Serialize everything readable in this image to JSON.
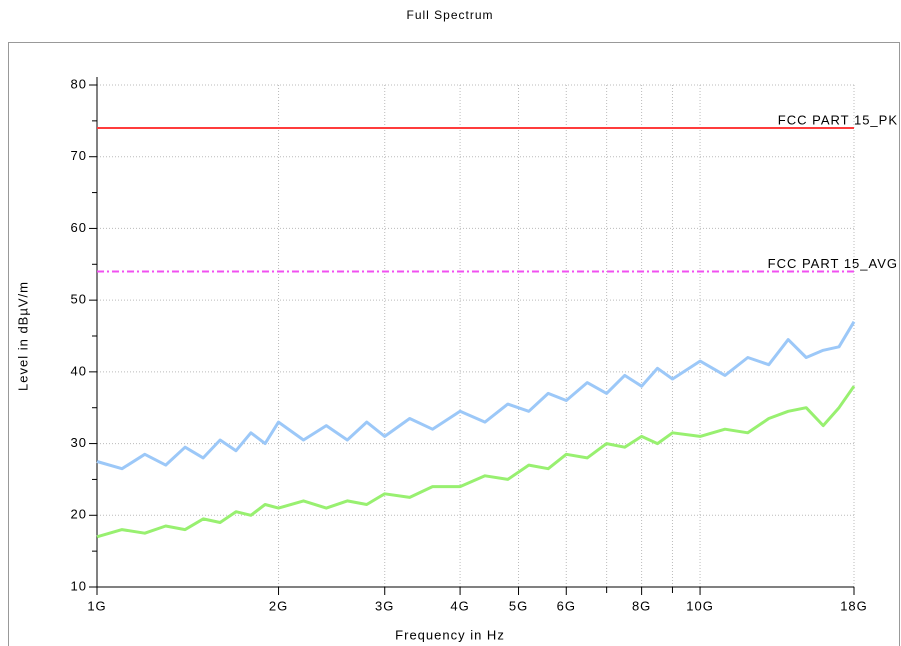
{
  "chart_data": {
    "type": "line",
    "title": "Full Spectrum",
    "xlabel": "Frequency in Hz",
    "ylabel": "Level in dBµV/m",
    "xscale": "log",
    "grid": true,
    "xlim": [
      1000000000.0,
      18000000000.0
    ],
    "xticks": [
      {
        "value": 1000000000.0,
        "label": "1G"
      },
      {
        "value": 2000000000.0,
        "label": "2G"
      },
      {
        "value": 3000000000.0,
        "label": "3G"
      },
      {
        "value": 4000000000.0,
        "label": "4G"
      },
      {
        "value": 5000000000.0,
        "label": "5G"
      },
      {
        "value": 6000000000.0,
        "label": "6G"
      },
      {
        "value": 8000000000.0,
        "label": "8G"
      },
      {
        "value": 10000000000.0,
        "label": "10G"
      },
      {
        "value": 18000000000.0,
        "label": "18G"
      }
    ],
    "xminorticks": [
      7000000000.0,
      9000000000.0
    ],
    "ylim": [
      10,
      80
    ],
    "yticks": [
      10,
      20,
      30,
      40,
      50,
      60,
      70,
      80
    ],
    "yminorticks": [
      15,
      25,
      35,
      45,
      55,
      65,
      75
    ],
    "x": [
      1000000000.0,
      1100000000.0,
      1200000000.0,
      1300000000.0,
      1400000000.0,
      1500000000.0,
      1600000000.0,
      1700000000.0,
      1800000000.0,
      1900000000.0,
      2000000000.0,
      2200000000.0,
      2400000000.0,
      2600000000.0,
      2800000000.0,
      3000000000.0,
      3300000000.0,
      3600000000.0,
      4000000000.0,
      4400000000.0,
      4800000000.0,
      5200000000.0,
      5600000000.0,
      6000000000.0,
      6500000000.0,
      7000000000.0,
      7500000000.0,
      8000000000.0,
      8500000000.0,
      9000000000.0,
      10000000000.0,
      11000000000.0,
      12000000000.0,
      13000000000.0,
      14000000000.0,
      15000000000.0,
      16000000000.0,
      17000000000.0,
      18000000000.0
    ],
    "series": [
      {
        "color": "#9cc8f8",
        "values": [
          27.5,
          26.5,
          28.5,
          27,
          29.5,
          28,
          30.5,
          29,
          31.5,
          30,
          33,
          30.5,
          32.5,
          30.5,
          33,
          31,
          33.5,
          32,
          34.5,
          33,
          35.5,
          34.5,
          37,
          36,
          38.5,
          37,
          39.5,
          38,
          40.5,
          39,
          41.5,
          39.5,
          42,
          41,
          44.5,
          42,
          43,
          43.5,
          47
        ]
      },
      {
        "color": "#98f070",
        "values": [
          17,
          18,
          17.5,
          18.5,
          18,
          19.5,
          19,
          20.5,
          20,
          21.5,
          21,
          22,
          21,
          22,
          21.5,
          23,
          22.5,
          24,
          24,
          25.5,
          25,
          27,
          26.5,
          28.5,
          28,
          30,
          29.5,
          31,
          30,
          31.5,
          31,
          32,
          31.5,
          33.5,
          34.5,
          35,
          32.5,
          35,
          38
        ]
      }
    ],
    "limits": [
      {
        "label": "FCC PART 15_PK",
        "value": 74,
        "color": "#ff3c3c",
        "style": "solid"
      },
      {
        "label": "FCC PART 15_AVG",
        "value": 54,
        "color": "#f050f0",
        "style": "dashdot"
      }
    ]
  }
}
